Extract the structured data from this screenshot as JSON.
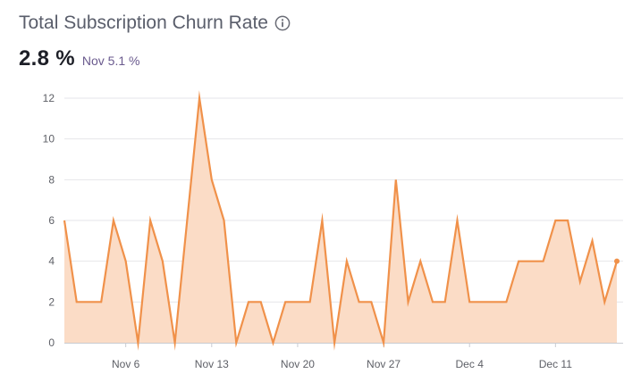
{
  "header": {
    "title": "Total Subscription Churn Rate",
    "info_icon": "info-icon",
    "value": "2.8 %",
    "compare": "Nov 5.1 %"
  },
  "colors": {
    "line": "#f0914a",
    "fill": "#fbdcc6",
    "grid": "#e6e6ea",
    "axis": "#c9cbd1"
  },
  "chart_data": {
    "type": "area",
    "title": "Total Subscription Churn Rate",
    "xlabel": "",
    "ylabel": "",
    "ylim": [
      0,
      12
    ],
    "yticks": [
      0,
      2,
      4,
      6,
      8,
      10,
      12
    ],
    "xticks": [
      {
        "label": "Nov 6",
        "index": 5
      },
      {
        "label": "Nov 13",
        "index": 12
      },
      {
        "label": "Nov 20",
        "index": 19
      },
      {
        "label": "Nov 27",
        "index": 26
      },
      {
        "label": "Dec 4",
        "index": 33
      },
      {
        "label": "Dec 11",
        "index": 40
      }
    ],
    "x_start": "Nov 1",
    "x_end": "Dec 16",
    "grid": true,
    "last_point_marker": true,
    "series": [
      {
        "values": [
          6,
          2,
          2,
          2,
          6,
          4,
          0,
          6,
          4,
          0,
          6,
          12,
          8,
          6,
          0,
          2,
          2,
          0,
          2,
          2,
          2,
          6,
          0,
          4,
          2,
          2,
          0,
          8,
          2,
          4,
          2,
          2,
          6,
          2,
          2,
          2,
          2,
          4,
          4,
          4,
          6,
          6,
          3,
          5,
          2,
          4
        ]
      }
    ]
  }
}
